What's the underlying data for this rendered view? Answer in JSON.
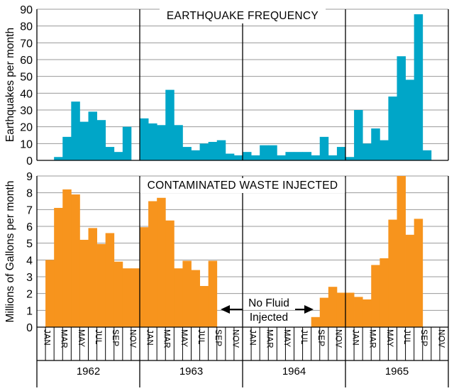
{
  "chart_data": [
    {
      "type": "bar",
      "title": "EARTHQUAKE FREQUENCY",
      "ylabel": "Earthquakes per month",
      "ylim": [
        0,
        90
      ],
      "yticks": [
        "0",
        "10",
        "20",
        "30",
        "40",
        "50",
        "60",
        "70",
        "80",
        "90"
      ],
      "grid": true,
      "color": "#00a6c8",
      "values": [
        0,
        0,
        2,
        14,
        35,
        23,
        29,
        24,
        8,
        5,
        20,
        0,
        25,
        22,
        21,
        42,
        21,
        8,
        6,
        10,
        11,
        12,
        4,
        3,
        5,
        3,
        9,
        9,
        3,
        5,
        5,
        5,
        3,
        14,
        3,
        8,
        2,
        30,
        10,
        19,
        12,
        38,
        62,
        48,
        87,
        6,
        0,
        0
      ]
    },
    {
      "type": "bar",
      "title": "CONTAMINATED WASTE INJECTED",
      "ylabel": "Millions of Gallons per month",
      "ylim": [
        0,
        9
      ],
      "yticks": [
        "0",
        "1",
        "2",
        "3",
        "4",
        "5",
        "6",
        "7",
        "8",
        "9"
      ],
      "grid": true,
      "color": "#f7941d",
      "annotation": {
        "line1": "No Fluid",
        "line2": "Injected"
      },
      "values": [
        0,
        4.0,
        7.1,
        8.2,
        7.9,
        5.2,
        5.9,
        4.95,
        5.6,
        3.9,
        3.5,
        3.5,
        5.95,
        7.5,
        7.7,
        6.35,
        3.5,
        3.95,
        3.4,
        2.45,
        3.95,
        0,
        0,
        0,
        0,
        0,
        0,
        0,
        0,
        0,
        0,
        0,
        0.6,
        1.75,
        2.4,
        2.05,
        2.05,
        1.8,
        1.65,
        3.7,
        4.1,
        6.4,
        9.0,
        5.5,
        6.45,
        0,
        0,
        0
      ]
    }
  ],
  "x_axis": {
    "month_labels": [
      "JAN",
      "MAR",
      "MAY",
      "JUL",
      "SEP",
      "NOV"
    ],
    "years": [
      "1962",
      "1963",
      "1964",
      "1965"
    ]
  }
}
